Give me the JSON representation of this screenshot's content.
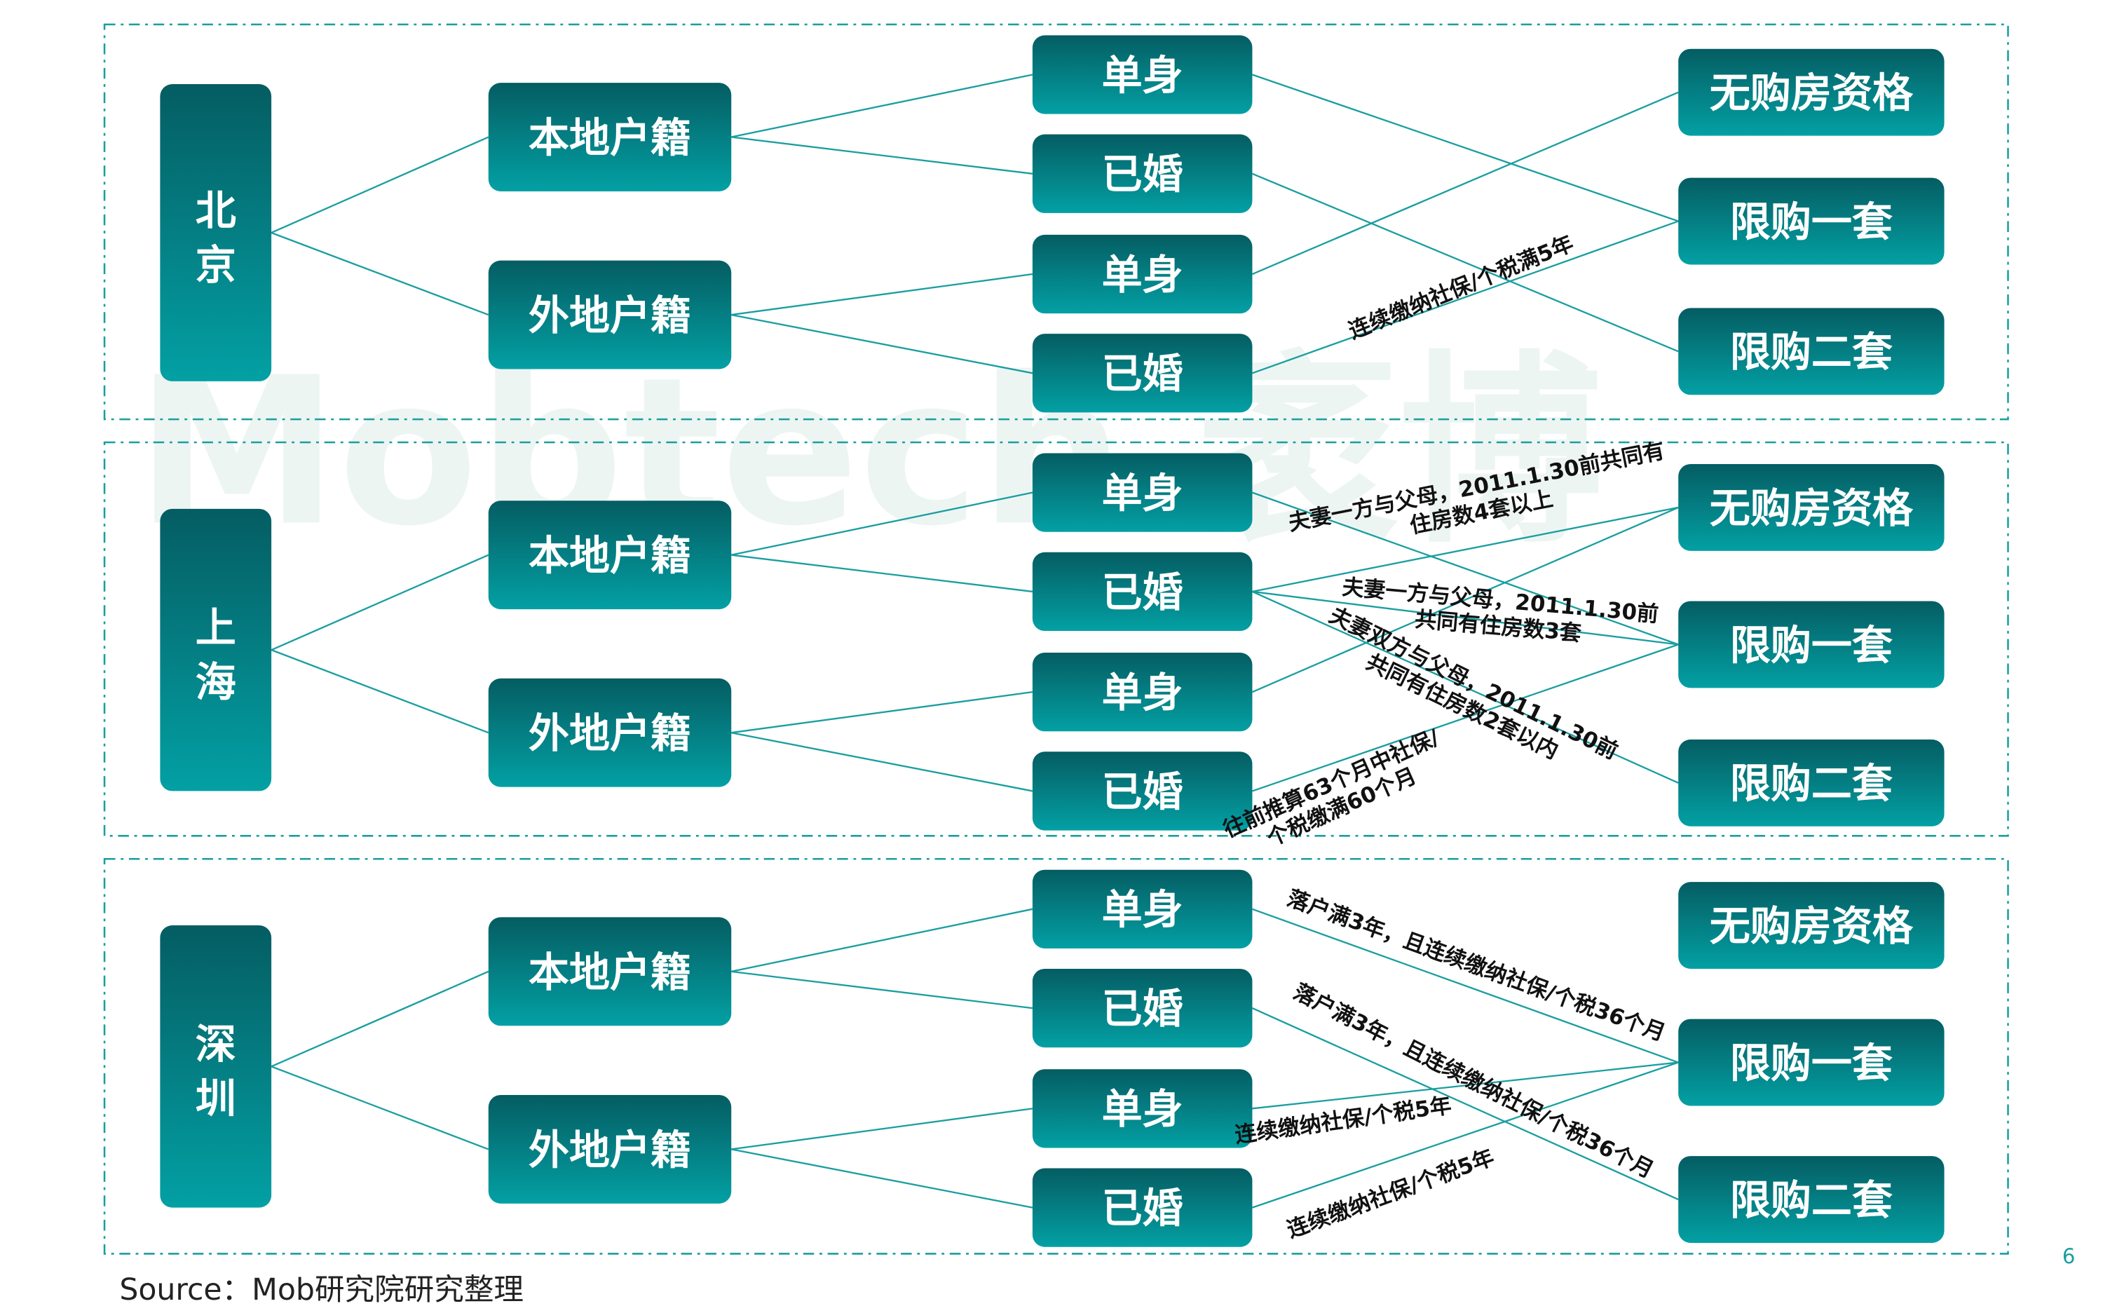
{
  "colors": {
    "box_top": "#045d62",
    "box_bottom": "#03a0a4",
    "line": "#1a9ea0",
    "border": "#1a9ea0"
  },
  "watermark": "Mobtech 袤博",
  "panels": [
    {
      "city": "北京",
      "city_chars": [
        "北",
        "京"
      ],
      "hukou": [
        "本地户籍",
        "外地户籍"
      ],
      "status": [
        "单身",
        "已婚",
        "单身",
        "已婚"
      ],
      "outcomes": [
        "无购房资格",
        "限购一套",
        "限购二套"
      ],
      "edges": [
        {
          "from": 0,
          "to": 1,
          "label": []
        },
        {
          "from": 1,
          "to": 2,
          "label": []
        },
        {
          "from": 2,
          "to": 0,
          "label": []
        },
        {
          "from": 3,
          "to": 1,
          "label": [
            "连续缴纳社保/个税满5年"
          ]
        }
      ]
    },
    {
      "city": "上海",
      "city_chars": [
        "上",
        "海"
      ],
      "hukou": [
        "本地户籍",
        "外地户籍"
      ],
      "status": [
        "单身",
        "已婚",
        "单身",
        "已婚"
      ],
      "outcomes": [
        "无购房资格",
        "限购一套",
        "限购二套"
      ],
      "edges": [
        {
          "from": 0,
          "to": 1,
          "label": []
        },
        {
          "from": 1,
          "to": 0,
          "label": [
            "夫妻一方与父母，2011.1.30前共同有",
            "住房数4套以上"
          ]
        },
        {
          "from": 1,
          "to": 1,
          "label": [
            "夫妻一方与父母，2011.1.30前",
            "共同有住房数3套"
          ]
        },
        {
          "from": 1,
          "to": 2,
          "label": [
            "夫妻双方与父母，2011.1.30前",
            "共同有住房数2套以内"
          ]
        },
        {
          "from": 2,
          "to": 0,
          "label": []
        },
        {
          "from": 3,
          "to": 1,
          "label": [
            "往前推算63个月中社保/",
            "个税缴满60个月"
          ]
        }
      ]
    },
    {
      "city": "深圳",
      "city_chars": [
        "深",
        "圳"
      ],
      "hukou": [
        "本地户籍",
        "外地户籍"
      ],
      "status": [
        "单身",
        "已婚",
        "单身",
        "已婚"
      ],
      "outcomes": [
        "无购房资格",
        "限购一套",
        "限购二套"
      ],
      "edges": [
        {
          "from": 0,
          "to": 1,
          "label": [
            "落户满3年，且连续缴纳社保/个税36个月"
          ]
        },
        {
          "from": 1,
          "to": 2,
          "label": [
            "落户满3年，且连续缴纳社保/个税36个月"
          ]
        },
        {
          "from": 2,
          "to": 1,
          "label": [
            "连续缴纳社保/个税5年"
          ]
        },
        {
          "from": 3,
          "to": 1,
          "label": [
            "连续缴纳社保/个税5年"
          ]
        }
      ]
    }
  ],
  "source": "Source：Mob研究院研究整理",
  "page_number": "6"
}
